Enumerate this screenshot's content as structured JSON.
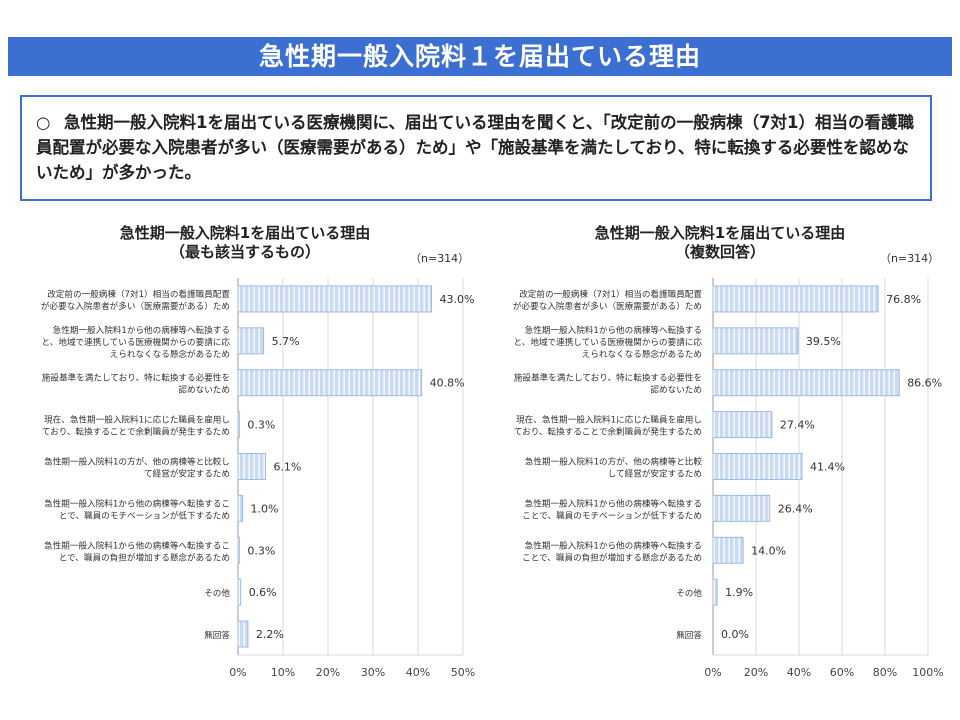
{
  "header": {
    "title": "急性期一般入院料１を届出ている理由"
  },
  "summary": {
    "bullet": "○",
    "text": "急性期一般入院料1を届出ている医療機関に、届出ている理由を聞くと、「改定前の一般病棟（7対1）相当の看護職員配置が必要な入院患者が多い（医療需要がある）ため」や「施設基準を満たしており、特に転換する必要性を認めないため」が多かった。"
  },
  "colors": {
    "bar_fill": "#c9dbf3",
    "bar_stripe": "#ffffff",
    "bar_border": "#9dbbe6",
    "title_bar": "#3b6fd1"
  },
  "chart_data": [
    {
      "type": "bar",
      "orientation": "horizontal",
      "title_line1": "急性期一般入院料1を届出ている理由",
      "title_line2": "（最も該当するもの）",
      "n_label": "（n=314）",
      "categories": [
        "改定前の一般病棟（7対1）相当の看護職員配置|が必要な入院患者が多い（医療需要がある）ため",
        "急性期一般入院料1から他の病棟等へ転換する|と、地域で連携している医療機関からの要請に応|えられなくなる懸念があるため",
        "施設基準を満たしており、特に転換する必要性を|認めないため",
        "現在、急性期一般入院料1に応じた職員を雇用し|ており、転換することで余剰職員が発生するため",
        "急性期一般入院料1の方が、他の病棟等と比較し|て経営が安定するため",
        "急性期一般入院料1から他の病棟等へ転換するこ|とで、職員のモチベーションが低下するため",
        "急性期一般入院料1から他の病棟等へ転換するこ|とで、職員の負担が増加する懸念があるため",
        "その他",
        "無回答"
      ],
      "values": [
        43.0,
        5.7,
        40.8,
        0.3,
        6.1,
        1.0,
        0.3,
        0.6,
        2.2
      ],
      "data_labels": [
        "43.0%",
        "5.7%",
        "40.8%",
        "0.3%",
        "6.1%",
        "1.0%",
        "0.3%",
        "0.6%",
        "2.2%"
      ],
      "xlim": [
        0,
        50
      ],
      "ticks": [
        "0%",
        "10%",
        "20%",
        "30%",
        "40%",
        "50%"
      ],
      "grid": true
    },
    {
      "type": "bar",
      "orientation": "horizontal",
      "title_line1": "急性期一般入院料1を届出ている理由",
      "title_line2": "（複数回答）",
      "n_label": "（n=314）",
      "categories": [
        "改定前の一般病棟（7対1）相当の看護職員配置|が必要な入院患者が多い（医療需要がある）ため",
        "急性期一般入院料1から他の病棟等へ転換する|と、地域で連携している医療機関からの要請に応|えられなくなる懸念があるため",
        "施設基準を満たしており、特に転換する必要性を|認めないため",
        "現在、急性期一般入院料1に応じた職員を雇用し|ており、転換することで余剰職員が発生するため",
        "急性期一般入院料1の方が、他の病棟等と比較|して経営が安定するため",
        "急性期一般入院料1から他の病棟等へ転換する|ことで、職員のモチベーションが低下するため",
        "急性期一般入院料1から他の病棟等へ転換する|ことで、職員の負担が増加する懸念があるため",
        "その他",
        "無回答"
      ],
      "values": [
        76.8,
        39.5,
        86.6,
        27.4,
        41.4,
        26.4,
        14.0,
        1.9,
        0.0
      ],
      "data_labels": [
        "76.8%",
        "39.5%",
        "86.6%",
        "27.4%",
        "41.4%",
        "26.4%",
        "14.0%",
        "1.9%",
        "0.0%"
      ],
      "xlim": [
        0,
        100
      ],
      "ticks": [
        "0%",
        "20%",
        "40%",
        "60%",
        "80%",
        "100%"
      ],
      "grid": true
    }
  ]
}
